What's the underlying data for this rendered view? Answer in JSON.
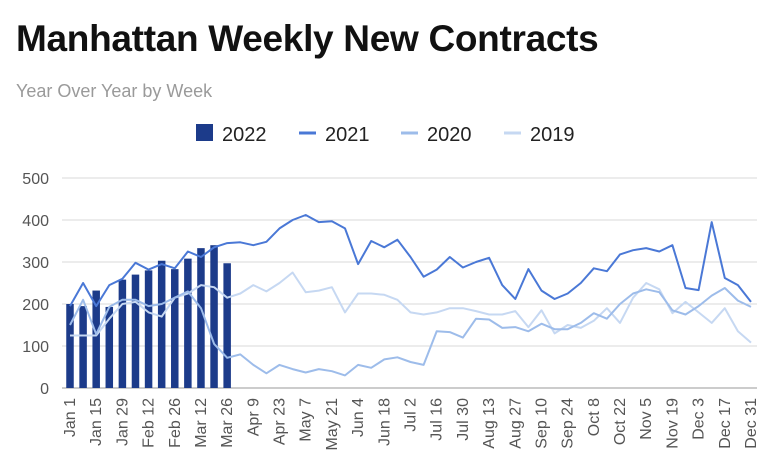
{
  "title": "Manhattan Weekly New Contracts",
  "subtitle": "Year Over Year by Week",
  "chart_data": {
    "type": "bar+line",
    "title": "Manhattan Weekly New Contracts",
    "subtitle": "Year Over Year by Week",
    "xlabel": "",
    "ylabel": "",
    "ylim": [
      0,
      500
    ],
    "y_ticks": [
      0,
      100,
      200,
      300,
      400,
      500
    ],
    "grid": true,
    "legend_position": "top",
    "x_tick_labels": [
      "Jan 1",
      "Jan 15",
      "Jan 29",
      "Feb 12",
      "Feb 26",
      "Mar 12",
      "Mar 26",
      "Apr 9",
      "Apr 23",
      "May 7",
      "May 21",
      "Jun 4",
      "Jun 18",
      "Jul 2",
      "Jul 16",
      "Jul 30",
      "Aug 13",
      "Aug 27",
      "Sep 10",
      "Sep 24",
      "Oct 8",
      "Oct 22",
      "Nov 5",
      "Nov 19",
      "Dec 3",
      "Dec 17",
      "Dec 31"
    ],
    "weeks": 53,
    "series": [
      {
        "name": "2022",
        "kind": "bar",
        "color": "#1c3b8a",
        "values": [
          200,
          195,
          232,
          193,
          258,
          270,
          280,
          303,
          283,
          308,
          333,
          340,
          297
        ]
      },
      {
        "name": "2021",
        "kind": "line",
        "color": "#4a78d6",
        "values": [
          195,
          250,
          195,
          245,
          260,
          298,
          282,
          295,
          285,
          325,
          312,
          335,
          345,
          347,
          340,
          348,
          380,
          400,
          412,
          395,
          397,
          380,
          295,
          350,
          335,
          353,
          312,
          265,
          282,
          312,
          287,
          300,
          310,
          245,
          212,
          283,
          232,
          212,
          225,
          250,
          285,
          278,
          318,
          328,
          333,
          325,
          340,
          238,
          233,
          395,
          262,
          245,
          205
        ]
      },
      {
        "name": "2020",
        "kind": "line",
        "color": "#9dbcea",
        "values": [
          150,
          210,
          128,
          193,
          210,
          210,
          195,
          200,
          215,
          230,
          190,
          105,
          72,
          80,
          55,
          35,
          55,
          45,
          37,
          45,
          40,
          30,
          55,
          48,
          68,
          73,
          62,
          55,
          135,
          133,
          120,
          165,
          163,
          143,
          145,
          135,
          153,
          140,
          140,
          155,
          178,
          165,
          200,
          225,
          235,
          228,
          185,
          175,
          195,
          220,
          238,
          208,
          193
        ]
      },
      {
        "name": "2019",
        "kind": "line",
        "color": "#c6d8f2",
        "values": [
          125,
          125,
          125,
          165,
          200,
          205,
          180,
          170,
          215,
          225,
          245,
          240,
          215,
          225,
          245,
          230,
          250,
          275,
          228,
          232,
          240,
          180,
          225,
          225,
          222,
          210,
          180,
          175,
          180,
          190,
          190,
          183,
          175,
          175,
          183,
          145,
          185,
          130,
          150,
          143,
          160,
          190,
          155,
          215,
          250,
          235,
          178,
          205,
          180,
          155,
          190,
          135,
          108
        ]
      }
    ]
  }
}
